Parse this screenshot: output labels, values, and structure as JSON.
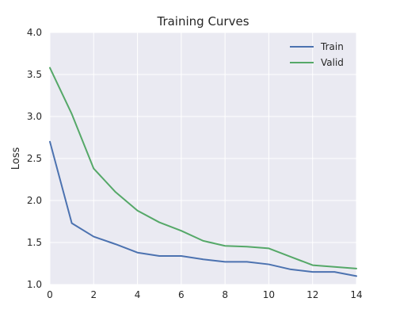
{
  "chart_data": {
    "type": "line",
    "title": "Training Curves",
    "xlabel": "",
    "ylabel": "Loss",
    "xlim": [
      0,
      14
    ],
    "ylim": [
      1.0,
      4.0
    ],
    "xticks": [
      0,
      2,
      4,
      6,
      8,
      10,
      12,
      14
    ],
    "yticks": [
      1.0,
      1.5,
      2.0,
      2.5,
      3.0,
      3.5,
      4.0
    ],
    "grid": true,
    "legend_position": "top-right",
    "series": [
      {
        "name": "Train",
        "color": "#4c72b0",
        "x": [
          0,
          1,
          2,
          3,
          4,
          5,
          6,
          7,
          8,
          9,
          10,
          11,
          12,
          13,
          14
        ],
        "y": [
          2.7,
          1.73,
          1.57,
          1.48,
          1.38,
          1.34,
          1.34,
          1.3,
          1.27,
          1.27,
          1.24,
          1.18,
          1.15,
          1.15,
          1.1
        ]
      },
      {
        "name": "Valid",
        "color": "#55a868",
        "x": [
          0,
          1,
          2,
          3,
          4,
          5,
          6,
          7,
          8,
          9,
          10,
          11,
          12,
          13,
          14
        ],
        "y": [
          3.58,
          3.03,
          2.38,
          2.1,
          1.88,
          1.74,
          1.64,
          1.52,
          1.46,
          1.45,
          1.43,
          1.33,
          1.23,
          1.21,
          1.19
        ]
      }
    ]
  },
  "theme": {
    "plot_background": "#eaeaf2",
    "grid_color": "#ffffff",
    "text_color": "#262626"
  }
}
